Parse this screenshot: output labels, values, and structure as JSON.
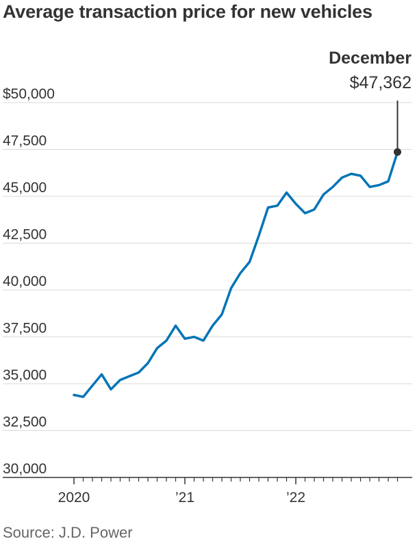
{
  "chart_data": {
    "type": "line",
    "title": "Average transaction price for new vehicles",
    "source": "Source: J.D. Power",
    "x_tick_labels": [
      "2020",
      "’21",
      "’22"
    ],
    "y_ticks": [
      30000,
      32500,
      35000,
      37500,
      40000,
      42500,
      45000,
      47500,
      50000
    ],
    "y_tick_labels": [
      "30,000",
      "32,500",
      "35,000",
      "37,500",
      "40,000",
      "42,500",
      "45,000",
      "47,500",
      "$50,000"
    ],
    "ylim": [
      30000,
      50000
    ],
    "grid": true,
    "colors": {
      "line": "#0274b6",
      "grid": "#d9d9d9",
      "axis": "#333333",
      "marker": "#333333"
    },
    "series": [
      {
        "values": [
          34400,
          34300,
          34900,
          35500,
          34700,
          35200,
          35400,
          35600,
          36100,
          36900,
          37300,
          38100,
          37400,
          37500,
          37300,
          38100,
          38700,
          40100,
          40900,
          41500,
          42900,
          44400,
          44500,
          45200,
          44600,
          44100,
          44300,
          45100,
          45500,
          46000,
          46200,
          46100,
          45500,
          45600,
          45800,
          47362
        ]
      }
    ],
    "annotation": {
      "label": "December",
      "value_label": "$47,362",
      "point_index": 35
    }
  }
}
